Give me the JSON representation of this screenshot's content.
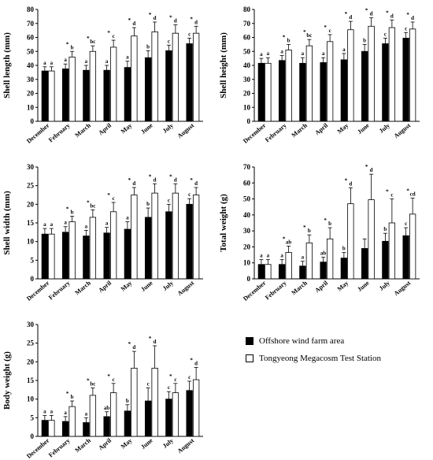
{
  "legend": {
    "items": [
      {
        "label": "Offshore wind farm area",
        "color": "#000000"
      },
      {
        "label": "Tongyeong Megacosm Test Station",
        "color": "#ffffff"
      }
    ]
  },
  "chart_data": [
    {
      "type": "bar",
      "ylabel": "Shell length (mm)",
      "ylim": [
        0,
        80
      ],
      "yticks": [
        0,
        10,
        20,
        30,
        40,
        50,
        60,
        70,
        80
      ],
      "categories": [
        "December",
        "February",
        "March",
        "April",
        "May",
        "June",
        "July",
        "August"
      ],
      "series": [
        {
          "name": "Offshore wind farm area",
          "values": [
            36,
            37.5,
            36.5,
            36.5,
            38.5,
            45.5,
            50.5,
            55.5
          ],
          "errors": [
            3,
            3.5,
            3.5,
            3.5,
            4.5,
            5,
            4,
            4
          ],
          "letters": [
            "a",
            "a",
            "a",
            "a",
            "a",
            "b",
            "c",
            "c"
          ],
          "stars": [
            false,
            false,
            false,
            false,
            false,
            false,
            false,
            false
          ]
        },
        {
          "name": "Tongyeong Megacosm Test Station",
          "values": [
            36,
            46,
            50,
            53,
            61,
            64,
            63,
            63
          ],
          "errors": [
            3,
            4,
            4,
            5,
            6,
            7,
            6,
            5
          ],
          "letters": [
            "a",
            "b",
            "bc",
            "c",
            "d",
            "d",
            "d",
            "d"
          ],
          "stars": [
            false,
            true,
            true,
            true,
            true,
            true,
            true,
            true
          ]
        }
      ]
    },
    {
      "type": "bar",
      "ylabel": "Shell height (mm)",
      "ylim": [
        0,
        80
      ],
      "yticks": [
        0,
        10,
        20,
        30,
        40,
        50,
        60,
        70,
        80
      ],
      "categories": [
        "December",
        "February",
        "March",
        "April",
        "May",
        "June",
        "July",
        "August"
      ],
      "series": [
        {
          "name": "Offshore wind farm area",
          "values": [
            41.5,
            43.5,
            41.5,
            42,
            44,
            50,
            55.5,
            59.5
          ],
          "errors": [
            3.5,
            3.5,
            4,
            3.5,
            4.5,
            5,
            4,
            4
          ],
          "letters": [
            "a",
            "a",
            "a",
            "a",
            "a",
            "b",
            "c",
            "c"
          ],
          "stars": [
            false,
            false,
            false,
            false,
            false,
            false,
            false,
            false
          ]
        },
        {
          "name": "Tongyeong Megacosm Test Station",
          "values": [
            41.5,
            51,
            54,
            57,
            65.5,
            68,
            67,
            66
          ],
          "errors": [
            4,
            4,
            4.5,
            5,
            6,
            6,
            5.5,
            5
          ],
          "letters": [
            "a",
            "b",
            "bc",
            "c",
            "d",
            "d",
            "d",
            "d"
          ],
          "stars": [
            false,
            true,
            true,
            true,
            true,
            true,
            true,
            true
          ]
        }
      ]
    },
    {
      "type": "bar",
      "ylabel": "Shell width (mm)",
      "ylim": [
        0,
        30
      ],
      "yticks": [
        0,
        5,
        10,
        15,
        20,
        25,
        30
      ],
      "categories": [
        "December",
        "February",
        "March",
        "April",
        "May",
        "June",
        "July",
        "August"
      ],
      "series": [
        {
          "name": "Offshore wind farm area",
          "values": [
            12,
            12.5,
            11.5,
            12.3,
            13.3,
            16.5,
            18,
            20
          ],
          "errors": [
            1.5,
            1.5,
            1.5,
            1.5,
            2,
            2.5,
            2,
            1.5
          ],
          "letters": [
            "a",
            "a",
            "a",
            "a",
            "a",
            "b",
            "c",
            "c"
          ],
          "stars": [
            false,
            false,
            false,
            false,
            false,
            false,
            false,
            false
          ]
        },
        {
          "name": "Tongyeong Megacosm Test Station",
          "values": [
            12,
            15.3,
            16.5,
            18,
            22.5,
            23,
            23,
            22.5
          ],
          "errors": [
            1.5,
            1.5,
            2,
            2.5,
            2,
            2.5,
            2.5,
            2
          ],
          "letters": [
            "a",
            "b",
            "bc",
            "c",
            "d",
            "d",
            "d",
            "d"
          ],
          "stars": [
            false,
            true,
            true,
            true,
            true,
            true,
            true,
            true
          ]
        }
      ]
    },
    {
      "type": "bar",
      "ylabel": "Total weight (g)",
      "ylim": [
        0,
        70
      ],
      "yticks": [
        0,
        10,
        20,
        30,
        40,
        50,
        60,
        70
      ],
      "categories": [
        "December",
        "February",
        "March",
        "April",
        "May",
        "June",
        "July",
        "August"
      ],
      "series": [
        {
          "name": "Offshore wind farm area",
          "values": [
            9,
            9,
            8,
            10.5,
            13,
            19,
            23.5,
            27
          ],
          "errors": [
            3,
            3,
            3,
            3,
            3.5,
            6,
            5,
            5
          ],
          "letters": [
            "a",
            "a",
            "a",
            "ab",
            "b",
            "",
            "b",
            "c"
          ],
          "stars": [
            false,
            false,
            false,
            false,
            false,
            false,
            false,
            false
          ]
        },
        {
          "name": "Tongyeong Megacosm Test Station",
          "values": [
            9,
            16.5,
            22.5,
            25,
            47,
            49.5,
            35,
            40.5
          ],
          "errors": [
            3,
            4,
            5,
            7,
            10,
            16,
            15,
            10
          ],
          "letters": [
            "a",
            "ab",
            "b",
            "b",
            "d",
            "d",
            "c",
            "cd"
          ],
          "stars": [
            false,
            true,
            true,
            true,
            true,
            true,
            true,
            true
          ]
        }
      ]
    },
    {
      "type": "bar",
      "ylabel": "Body weight (g)",
      "ylim": [
        0,
        30
      ],
      "yticks": [
        0,
        5,
        10,
        15,
        20,
        25,
        30
      ],
      "categories": [
        "December",
        "February",
        "March",
        "April",
        "May",
        "June",
        "July",
        "August"
      ],
      "series": [
        {
          "name": "Offshore wind farm area",
          "values": [
            4.3,
            4,
            3.7,
            5.3,
            6.8,
            9.5,
            10,
            12.3
          ],
          "errors": [
            1.3,
            1.3,
            1.3,
            1.3,
            1.7,
            3.5,
            2,
            2.5
          ],
          "letters": [
            "a",
            "a",
            "a",
            "ab",
            "b",
            "c",
            "c",
            "c"
          ],
          "stars": [
            false,
            false,
            false,
            false,
            false,
            false,
            false,
            false
          ]
        },
        {
          "name": "Tongyeong Megacosm Test Station",
          "values": [
            4.3,
            8,
            11,
            11.7,
            18.3,
            18.3,
            11.7,
            15.2
          ],
          "errors": [
            1.3,
            1.5,
            2,
            2.5,
            4.5,
            6,
            2.5,
            3.3
          ],
          "letters": [
            "a",
            "b",
            "bc",
            "c",
            "d",
            "d",
            "c",
            "d"
          ],
          "stars": [
            false,
            true,
            true,
            true,
            true,
            true,
            true,
            true
          ]
        }
      ]
    }
  ]
}
